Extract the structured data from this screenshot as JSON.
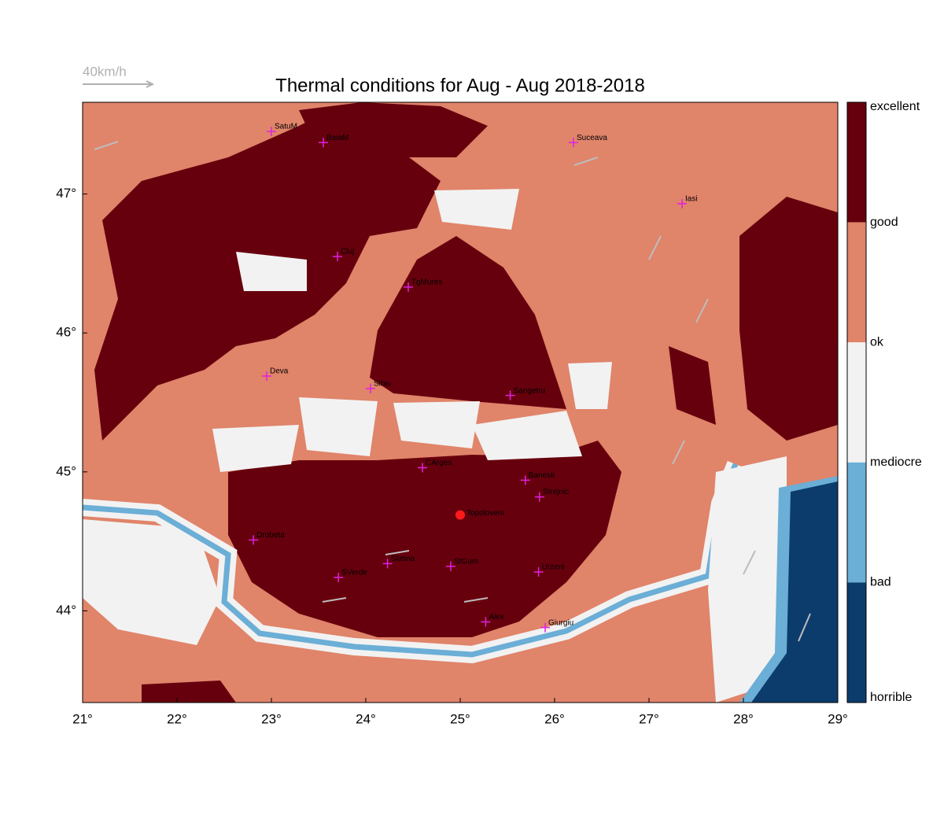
{
  "title": "Thermal conditions for Aug - Aug  2018-2018",
  "wind_scale": "40km/h",
  "xlim": [
    21,
    29
  ],
  "ylim": [
    43.34,
    47.66
  ],
  "xticks": [
    {
      "value": 21,
      "label": "21°"
    },
    {
      "value": 22,
      "label": "22°"
    },
    {
      "value": 23,
      "label": "23°"
    },
    {
      "value": 24,
      "label": "24°"
    },
    {
      "value": 25,
      "label": "25°"
    },
    {
      "value": 26,
      "label": "26°"
    },
    {
      "value": 27,
      "label": "27°"
    },
    {
      "value": 28,
      "label": "28°"
    },
    {
      "value": 29,
      "label": "29°"
    }
  ],
  "yticks": [
    {
      "value": 44,
      "label": "44°"
    },
    {
      "value": 45,
      "label": "45°"
    },
    {
      "value": 46,
      "label": "46°"
    },
    {
      "value": 47,
      "label": "47°"
    }
  ],
  "colorbar": {
    "labels": [
      "excellent",
      "good",
      "ok",
      "mediocre",
      "bad",
      "horrible"
    ],
    "colors": [
      "#67000d",
      "#e0846a",
      "#f2f2f2",
      "#6baed6",
      "#0b3c6c"
    ]
  },
  "cities": [
    {
      "name": "SatuM",
      "lon": 23.0,
      "lat": 47.45
    },
    {
      "name": "BaiaM",
      "lon": 23.55,
      "lat": 47.37
    },
    {
      "name": "Suceava",
      "lon": 26.2,
      "lat": 47.37
    },
    {
      "name": "Iasi",
      "lon": 27.35,
      "lat": 46.93
    },
    {
      "name": "Cluj",
      "lon": 23.7,
      "lat": 46.55
    },
    {
      "name": "TgMures",
      "lon": 24.45,
      "lat": 46.33
    },
    {
      "name": "Deva",
      "lon": 22.95,
      "lat": 45.69
    },
    {
      "name": "Sibiu",
      "lon": 24.05,
      "lat": 45.6
    },
    {
      "name": "Sangetru",
      "lon": 25.53,
      "lat": 45.55
    },
    {
      "name": "CArges",
      "lon": 24.6,
      "lat": 45.03
    },
    {
      "name": "Banesti",
      "lon": 25.69,
      "lat": 44.94
    },
    {
      "name": "Strejnic",
      "lon": 25.84,
      "lat": 44.82
    },
    {
      "name": "Drobeta",
      "lon": 22.81,
      "lat": 44.51
    },
    {
      "name": "Slatina",
      "lon": 24.23,
      "lat": 44.34
    },
    {
      "name": "StGum",
      "lon": 24.9,
      "lat": 44.32
    },
    {
      "name": "SVerde",
      "lon": 23.71,
      "lat": 44.24
    },
    {
      "name": "Urzeni",
      "lon": 25.83,
      "lat": 44.28
    },
    {
      "name": "Alex",
      "lon": 25.27,
      "lat": 43.92
    },
    {
      "name": "Giurgiu",
      "lon": 25.9,
      "lat": 43.88
    }
  ],
  "site": {
    "name": "Topoloveni",
    "lon": 25.0,
    "lat": 44.69
  }
}
